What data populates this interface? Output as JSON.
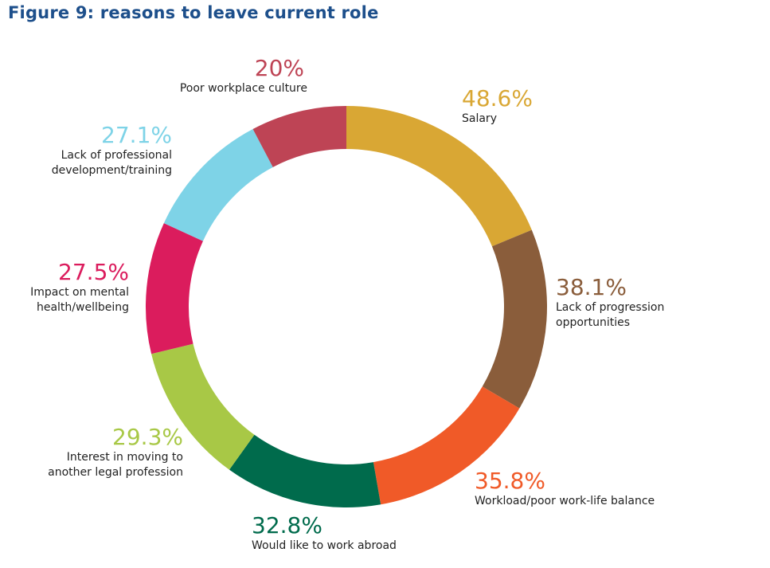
{
  "chart_data": {
    "type": "pie",
    "subtype": "donut",
    "title": "Figure 9: reasons to leave current role",
    "slices": [
      {
        "label": "Salary",
        "value": 48.6,
        "display": "48.6%",
        "color": "#D9A734"
      },
      {
        "label": "Lack of progression opportunities",
        "value": 38.1,
        "display": "38.1%",
        "color": "#8A5D3B"
      },
      {
        "label": "Workload/poor work-life balance",
        "value": 35.8,
        "display": "35.8%",
        "color": "#F05A28"
      },
      {
        "label": "Would like to work abroad",
        "value": 32.8,
        "display": "32.8%",
        "color": "#006B4C"
      },
      {
        "label": "Interest in moving to another legal profession",
        "value": 29.3,
        "display": "29.3%",
        "color": "#A8C846"
      },
      {
        "label": "Impact on mental health/wellbeing",
        "value": 27.5,
        "display": "27.5%",
        "color": "#DB1C5D"
      },
      {
        "label": "Lack of professional development/training",
        "value": 27.1,
        "display": "27.1%",
        "color": "#7ED3E7"
      },
      {
        "label": "Poor workplace culture",
        "value": 20,
        "display": "20%",
        "color": "#BE4455"
      }
    ]
  }
}
